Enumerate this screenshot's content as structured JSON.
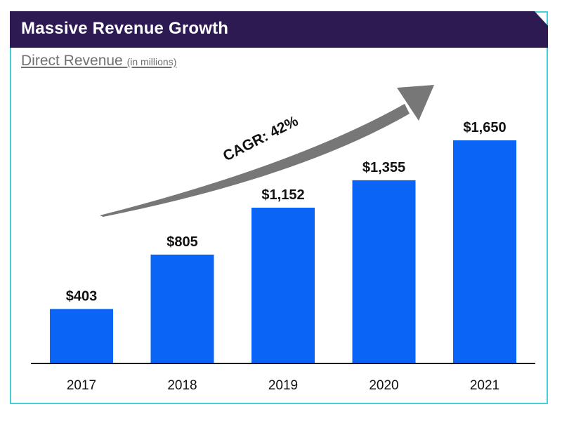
{
  "header": {
    "title": "Massive Revenue Growth"
  },
  "colors": {
    "header_bg": "#2d1a52",
    "border": "#46cfd6",
    "bar": "#0a64f5",
    "arrow": "#777777"
  },
  "chart_data": {
    "type": "bar",
    "title": "Direct Revenue",
    "subtitle_note": "(in millions)",
    "categories": [
      "2017",
      "2018",
      "2019",
      "2020",
      "2021"
    ],
    "values": [
      403,
      805,
      1152,
      1355,
      1650
    ],
    "value_labels": [
      "$403",
      "$805",
      "$1,152",
      "$1,355",
      "$1,650"
    ],
    "ylim": [
      0,
      1650
    ],
    "xlabel": "",
    "ylabel": "",
    "grid": false,
    "annotation": "CAGR: 42%"
  }
}
